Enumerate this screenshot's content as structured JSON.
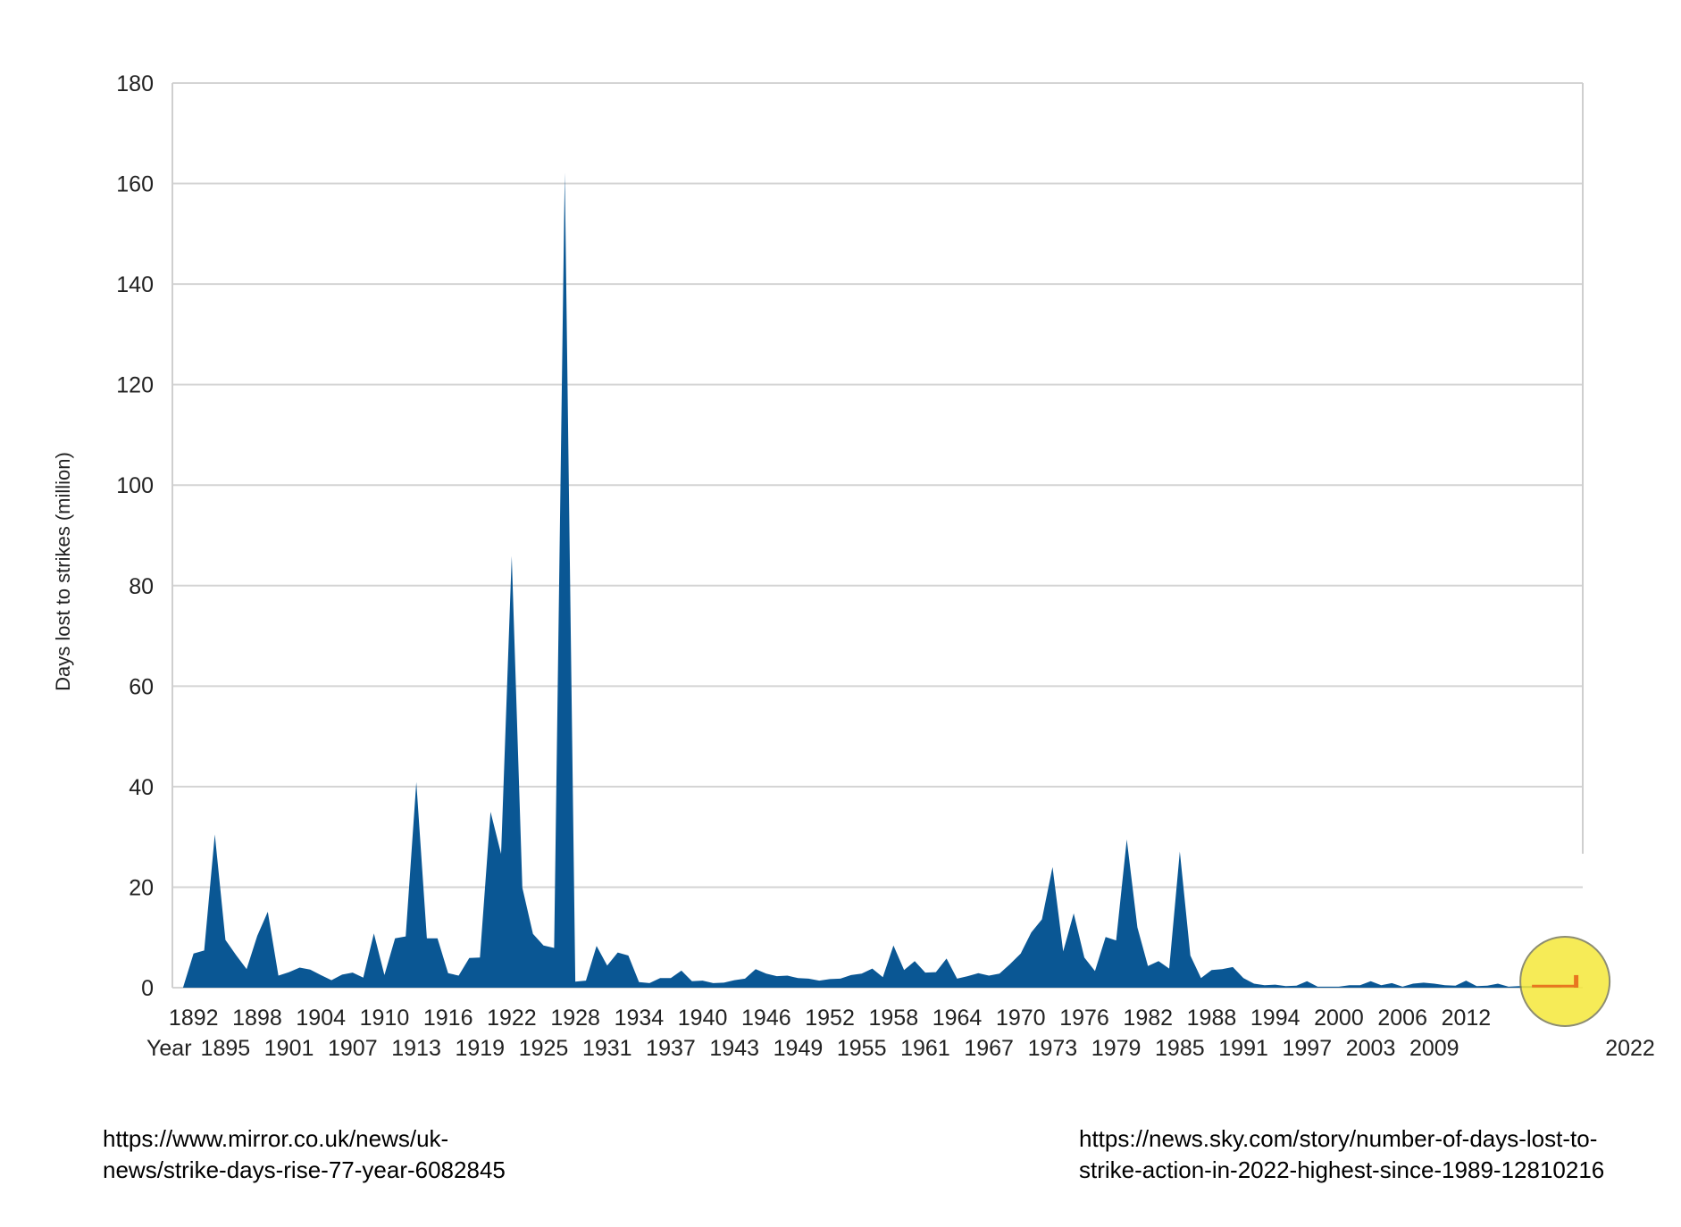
{
  "chart_data": {
    "type": "area",
    "title": "",
    "xlabel": "Year",
    "ylabel": "Days lost to strikes (million)",
    "ylim": [
      0,
      180
    ],
    "yticks": [
      0,
      20,
      40,
      60,
      80,
      100,
      120,
      140,
      160,
      180
    ],
    "xlim": [
      1890,
      2023
    ],
    "xticks_upper": [
      "1892",
      "1898",
      "1904",
      "1910",
      "1916",
      "1922",
      "1928",
      "1934",
      "1940",
      "1946",
      "1952",
      "1958",
      "1964",
      "1970",
      "1976",
      "1982",
      "1988",
      "1994",
      "2000",
      "2006",
      "2012"
    ],
    "xticks_lower": [
      "1895",
      "1901",
      "1907",
      "1913",
      "1919",
      "1925",
      "1931",
      "1937",
      "1943",
      "1949",
      "1955",
      "1961",
      "1967",
      "1973",
      "1979",
      "1985",
      "1991",
      "1997",
      "2003",
      "2009"
    ],
    "xtick_highlight": "2022",
    "grid": true,
    "fill_color": "#0a5794",
    "highlight_color": "#f5e83a",
    "highlight_bar_color": "#e8761f",
    "series": [
      {
        "x": [
          1891,
          1892,
          1893,
          1894,
          1895,
          1896,
          1897,
          1898,
          1899,
          1900,
          1901,
          1902,
          1903,
          1904,
          1905,
          1906,
          1907,
          1908,
          1909,
          1910,
          1911,
          1912,
          1913,
          1914,
          1915,
          1916,
          1917,
          1918,
          1919,
          1920,
          1921,
          1922,
          1923,
          1924,
          1925,
          1926,
          1927,
          1928,
          1929,
          1930,
          1931,
          1932,
          1933,
          1934,
          1935,
          1936,
          1937,
          1938,
          1939,
          1940,
          1941,
          1942,
          1943,
          1944,
          1945,
          1946,
          1947,
          1948,
          1949,
          1950,
          1951,
          1952,
          1953,
          1954,
          1955,
          1956,
          1957,
          1958,
          1959,
          1960,
          1961,
          1962,
          1963,
          1964,
          1965,
          1966,
          1967,
          1968,
          1969,
          1970,
          1971,
          1972,
          1973,
          1974,
          1975,
          1976,
          1977,
          1978,
          1979,
          1980,
          1981,
          1982,
          1983,
          1984,
          1985,
          1986,
          1987,
          1988,
          1989,
          1990,
          1991,
          1992,
          1993,
          1994,
          1995,
          1996,
          1997,
          1998,
          1999,
          2000,
          2001,
          2002,
          2003,
          2004,
          2005,
          2006,
          2007,
          2008,
          2009,
          2010,
          2011,
          2012,
          2013,
          2014,
          2015,
          2016,
          2017,
          2018,
          2019,
          2020,
          2021,
          2022
        ],
        "values": [
          0,
          6.8,
          7.4,
          30.5,
          9.5,
          6.5,
          3.7,
          10.3,
          15.1,
          2.4,
          3.1,
          4,
          3.6,
          2.5,
          1.5,
          2.6,
          3,
          2,
          10.8,
          2.5,
          9.8,
          10.2,
          40.9,
          9.8,
          9.8,
          2.9,
          2.4,
          5.9,
          6,
          35,
          26.6,
          85.9,
          19.9,
          10.7,
          8.4,
          7.9,
          162.2,
          1.2,
          1.4,
          8.3,
          4.4,
          7,
          6.4,
          1.1,
          0.9,
          1.9,
          1.9,
          3.4,
          1.3,
          1.4,
          0.9,
          1,
          1.5,
          1.8,
          3.7,
          2.8,
          2.3,
          2.4,
          1.9,
          1.8,
          1.4,
          1.7,
          1.8,
          2.5,
          2.8,
          3.8,
          2.1,
          8.4,
          3.5,
          5.3,
          3,
          3.1,
          5.8,
          1.8,
          2.3,
          2.9,
          2.4,
          2.8,
          4.7,
          6.8,
          11,
          13.6,
          24,
          7.2,
          14.8,
          6,
          3.3,
          10.1,
          9.4,
          29.5,
          12,
          4.3,
          5.3,
          3.8,
          27.1,
          6.4,
          1.9,
          3.5,
          3.7,
          4.1,
          1.9,
          0.8,
          0.5,
          0.6,
          0.3,
          0.4,
          1.3,
          0.2,
          0.2,
          0.2,
          0.5,
          0.5,
          1.3,
          0.5,
          0.9,
          0.2,
          0.8,
          1,
          0.8,
          0.5,
          0.4,
          1.4,
          0.3,
          0.4,
          0.8,
          0.2,
          0.3,
          0.3,
          0.3,
          0.3,
          0.2,
          2.5
        ]
      }
    ]
  },
  "sources": {
    "left": "https://www.mirror.co.uk/news/uk-\nnews/strike-days-rise-77-year-6082845",
    "right": "https://news.sky.com/story/number-of-days-lost-to-\nstrike-action-in-2022-highest-since-1989-12810216"
  }
}
